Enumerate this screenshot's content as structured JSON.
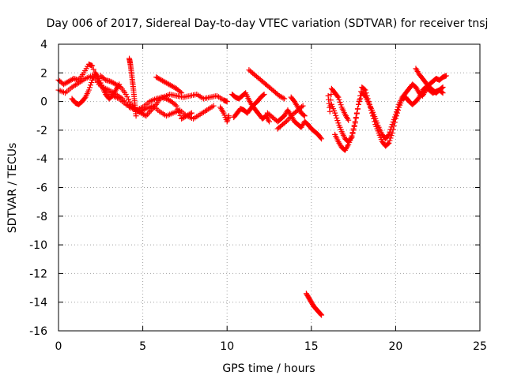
{
  "chart_data": {
    "type": "scatter",
    "title": "Day 006 of 2017, Sidereal Day-to-day VTEC variation (SDTVAR) for receiver tnsj",
    "xlabel": "GPS time / hours",
    "ylabel": "SDTVAR / TECUs",
    "xlim": [
      0,
      25
    ],
    "ylim": [
      -16,
      4
    ],
    "xticks": [
      0,
      5,
      10,
      15,
      20,
      25
    ],
    "yticks": [
      4,
      2,
      0,
      -2,
      -4,
      -6,
      -8,
      -10,
      -12,
      -14,
      -16
    ],
    "grid": true,
    "marker": "plus",
    "series": [
      {
        "name": "SDTVAR",
        "color": "#ff0000",
        "tracks": [
          {
            "x": [
              0.0,
              0.3,
              0.6,
              0.9,
              1.2,
              1.5,
              1.8,
              2.0,
              2.3,
              2.6,
              3.0,
              3.4,
              3.8,
              4.2,
              4.6,
              5.0,
              5.4,
              5.8,
              6.2,
              6.6,
              7.0,
              7.4,
              7.8,
              8.2,
              8.6,
              9.0,
              9.4,
              9.8,
              10.0
            ],
            "y": [
              1.5,
              1.2,
              1.4,
              1.6,
              1.5,
              2.0,
              2.6,
              2.5,
              1.5,
              1.0,
              0.8,
              0.5,
              0.2,
              -0.4,
              -0.6,
              -0.4,
              0.0,
              0.2,
              0.3,
              0.5,
              0.4,
              0.3,
              0.4,
              0.5,
              0.2,
              0.3,
              0.4,
              0.1,
              0.0
            ]
          },
          {
            "x": [
              0.0,
              0.4,
              0.8,
              1.2,
              1.6,
              2.0,
              2.4,
              2.8,
              3.2,
              3.6,
              4.0,
              4.4,
              4.8,
              5.2,
              5.6,
              6.0,
              6.4,
              6.8,
              7.2,
              7.6,
              8.0,
              8.4,
              8.8,
              9.2
            ],
            "y": [
              0.8,
              0.6,
              1.0,
              1.3,
              1.6,
              1.8,
              1.2,
              0.8,
              0.4,
              0.2,
              -0.2,
              -0.4,
              -0.7,
              -0.5,
              -0.3,
              -0.7,
              -1.0,
              -0.8,
              -0.6,
              -1.0,
              -1.2,
              -0.9,
              -0.6,
              -0.3
            ]
          },
          {
            "x": [
              0.8,
              1.0,
              1.2,
              1.4,
              1.6,
              1.8,
              2.0,
              2.2,
              2.4,
              2.6,
              2.8,
              3.0,
              3.2,
              3.4,
              3.6
            ],
            "y": [
              0.2,
              -0.1,
              -0.2,
              0.0,
              0.3,
              0.8,
              1.5,
              2.0,
              1.6,
              1.0,
              0.5,
              0.2,
              0.4,
              0.8,
              1.2
            ]
          },
          {
            "x": [
              2.5,
              2.8,
              3.1,
              3.4,
              3.7,
              4.0,
              4.3,
              4.6,
              4.9,
              5.2,
              5.5,
              5.8,
              6.1,
              6.4,
              6.7,
              7.0,
              7.3,
              7.6,
              7.9
            ],
            "y": [
              1.8,
              1.5,
              1.4,
              1.2,
              1.0,
              0.5,
              -0.2,
              -0.6,
              -0.8,
              -1.0,
              -0.6,
              -0.2,
              0.3,
              0.2,
              0.0,
              -0.3,
              -1.2,
              -1.0,
              -0.8
            ]
          },
          {
            "x": [
              4.2,
              4.25,
              4.3,
              4.35,
              4.4,
              4.45,
              4.5,
              4.55,
              4.6
            ],
            "y": [
              3.0,
              2.7,
              2.3,
              1.8,
              1.3,
              0.8,
              0.2,
              -0.4,
              -1.0
            ]
          },
          {
            "x": [
              5.8,
              6.1,
              6.4,
              6.7,
              7.0,
              7.3
            ],
            "y": [
              1.7,
              1.5,
              1.3,
              1.1,
              0.9,
              0.6
            ]
          },
          {
            "x": [
              9.6,
              9.8,
              10.0,
              10.1
            ],
            "y": [
              -0.4,
              -0.8,
              -1.4,
              -1.0
            ]
          },
          {
            "x": [
              10.3,
              10.5,
              10.7,
              10.9,
              11.1,
              11.3,
              11.5,
              11.7,
              11.9,
              12.1,
              12.3,
              12.5
            ],
            "y": [
              0.5,
              0.3,
              0.2,
              0.4,
              0.6,
              0.1,
              -0.3,
              -0.6,
              -0.9,
              -1.2,
              -1.0,
              -1.4
            ]
          },
          {
            "x": [
              10.4,
              10.6,
              10.8,
              11.0,
              11.2,
              11.4,
              11.6,
              11.8,
              12.0,
              12.2
            ],
            "y": [
              -1.1,
              -0.8,
              -0.5,
              -0.6,
              -0.8,
              -0.5,
              -0.2,
              0.0,
              0.3,
              0.5
            ]
          },
          {
            "x": [
              11.3,
              11.6,
              11.9,
              12.2,
              12.5,
              12.8,
              13.1,
              13.4
            ],
            "y": [
              2.2,
              1.9,
              1.6,
              1.3,
              1.0,
              0.7,
              0.4,
              0.2
            ]
          },
          {
            "x": [
              12.4,
              12.7,
              13.0,
              13.2,
              13.4,
              13.6,
              13.8,
              14.0,
              14.2,
              14.4,
              14.6,
              14.8,
              15.0,
              15.2,
              15.4,
              15.6
            ],
            "y": [
              -0.8,
              -1.1,
              -1.4,
              -1.2,
              -1.0,
              -0.6,
              -1.0,
              -1.4,
              -1.6,
              -1.8,
              -1.4,
              -1.6,
              -1.9,
              -2.1,
              -2.3,
              -2.6
            ]
          },
          {
            "x": [
              13.0,
              13.3,
              13.6,
              13.9,
              14.2,
              14.5
            ],
            "y": [
              -1.9,
              -1.6,
              -1.3,
              -0.9,
              -0.6,
              -0.3
            ]
          },
          {
            "x": [
              13.8,
              14.0,
              14.2,
              14.4,
              14.6
            ],
            "y": [
              0.3,
              0.0,
              -0.4,
              -0.8,
              -1.0
            ]
          },
          {
            "x": [
              14.7,
              14.85,
              15.0,
              15.15,
              15.3,
              15.45,
              15.6
            ],
            "y": [
              -13.4,
              -13.7,
              -14.0,
              -14.3,
              -14.5,
              -14.7,
              -14.9
            ]
          },
          {
            "x": [
              16.0,
              16.1,
              16.2,
              16.4,
              16.6,
              16.8,
              17.0,
              17.2
            ],
            "y": [
              0.4,
              -0.7,
              0.9,
              0.6,
              0.3,
              -0.4,
              -0.9,
              -1.3
            ]
          },
          {
            "x": [
              16.2,
              16.4,
              16.6,
              16.8,
              17.0,
              17.2,
              17.4,
              17.6,
              17.8,
              18.0,
              18.2,
              18.4,
              18.6,
              18.8,
              19.0,
              19.2,
              19.4,
              19.6,
              19.8,
              20.0,
              20.2,
              20.4,
              20.6,
              20.8,
              21.0,
              21.2,
              21.4,
              21.6,
              21.8,
              22.0,
              22.2,
              22.4,
              22.6,
              22.8,
              23.0
            ],
            "y": [
              -0.2,
              -0.8,
              -1.5,
              -2.1,
              -2.6,
              -2.8,
              -2.5,
              -1.5,
              -0.2,
              0.6,
              0.4,
              -0.1,
              -0.6,
              -1.2,
              -1.8,
              -2.3,
              -2.6,
              -2.3,
              -1.6,
              -0.9,
              -0.2,
              0.3,
              0.6,
              0.9,
              1.2,
              1.0,
              0.6,
              0.4,
              0.8,
              1.2,
              1.4,
              1.6,
              1.5,
              1.7,
              1.8
            ]
          },
          {
            "x": [
              16.4,
              16.6,
              16.8,
              17.0,
              17.2,
              17.4,
              17.6,
              17.8,
              18.0,
              18.2,
              18.4,
              18.6,
              18.8,
              19.0,
              19.2,
              19.4,
              19.6,
              19.8,
              20.0,
              20.2,
              20.4,
              20.6,
              20.8,
              21.0,
              21.2,
              21.4,
              21.6,
              21.8,
              22.0,
              22.2,
              22.4,
              22.6,
              22.8
            ],
            "y": [
              -2.3,
              -2.8,
              -3.2,
              -3.4,
              -3.0,
              -2.4,
              -1.4,
              -0.2,
              1.0,
              0.8,
              0.0,
              -0.8,
              -1.6,
              -2.2,
              -2.8,
              -3.1,
              -2.9,
              -2.2,
              -1.2,
              -0.4,
              0.2,
              0.3,
              0.0,
              -0.2,
              0.0,
              0.3,
              0.8,
              1.0,
              0.8,
              0.6,
              0.7,
              0.8,
              0.6
            ]
          },
          {
            "x": [
              21.2,
              21.4,
              21.6,
              21.8,
              22.0,
              22.2,
              22.4,
              22.6,
              22.8
            ],
            "y": [
              2.3,
              1.9,
              1.6,
              1.3,
              1.0,
              0.8,
              0.6,
              0.8,
              1.0
            ]
          }
        ]
      }
    ]
  }
}
